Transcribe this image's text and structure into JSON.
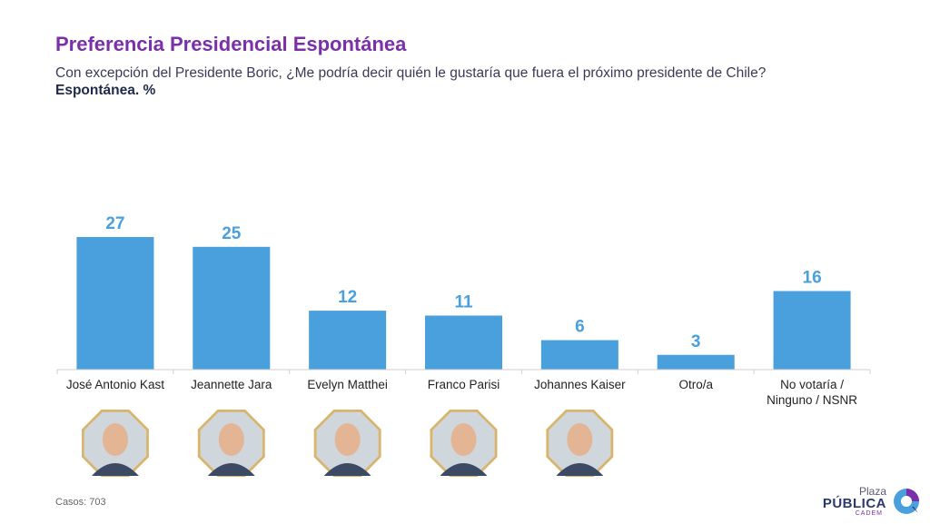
{
  "header": {
    "title": "Preferencia Presidencial Espontánea",
    "subtitle": "Con excepción del Presidente Boric, ¿Me podría decir quién le gustaría que fuera el próximo presidente de Chile?",
    "unit_label": "Espontánea. %"
  },
  "chart_data": {
    "type": "bar",
    "title": "Preferencia Presidencial Espontánea",
    "ylabel": "",
    "xlabel": "",
    "ylim": [
      0,
      27
    ],
    "categories": [
      [
        "José Antonio Kast"
      ],
      [
        "Jeannette Jara"
      ],
      [
        "Evelyn Matthei"
      ],
      [
        "Franco Parisi"
      ],
      [
        "Johannes Kaiser"
      ],
      [
        "Otro/a"
      ],
      [
        "No votaría /",
        "Ninguno / NSNR"
      ]
    ],
    "values": [
      27,
      25,
      12,
      11,
      6,
      3,
      16
    ],
    "value_labels": [
      "27",
      "25",
      "12",
      "11",
      "6",
      "3",
      "16"
    ],
    "has_photo": [
      true,
      true,
      true,
      true,
      true,
      false,
      false
    ],
    "bar_color": "#4a9fdd",
    "grid": false
  },
  "footer": {
    "cases": "Casos: 703",
    "logo_line1": "Plaza",
    "logo_line2": "PÚBLICA",
    "logo_line3": "CADEM"
  },
  "colors": {
    "title": "#7b2fa8",
    "bar": "#4a9fdd",
    "logo_navy": "#2b3a6b"
  },
  "icons": {
    "logo": "plaza-publica-logo-icon",
    "candidate": "candidate-photo-icon"
  }
}
